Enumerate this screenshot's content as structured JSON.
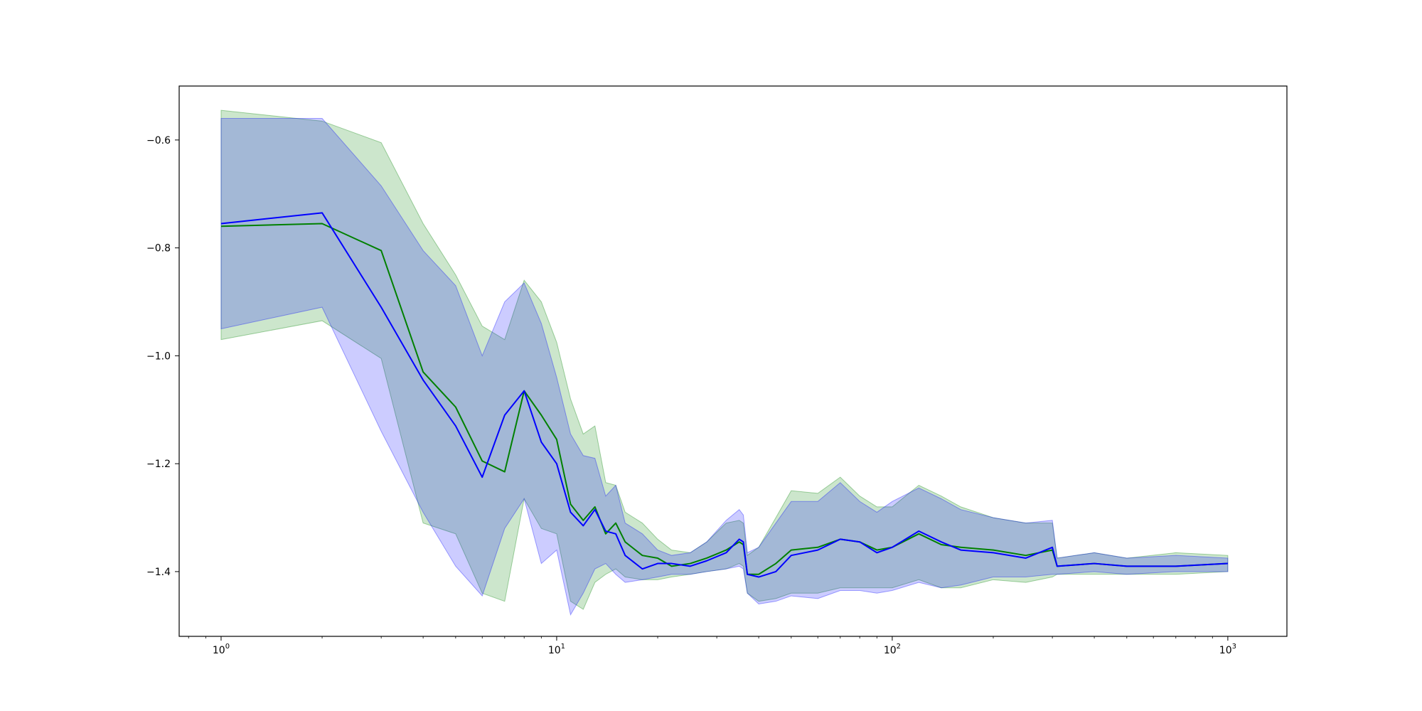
{
  "chart_data": {
    "type": "line",
    "title": "",
    "xlabel": "",
    "ylabel": "",
    "xscale": "log",
    "xlim": [
      0.75,
      1500
    ],
    "ylim": [
      -1.52,
      -0.5
    ],
    "grid": false,
    "legend": "none",
    "x_ticks": [
      {
        "base": "10",
        "exp": "0",
        "value": 1
      },
      {
        "base": "10",
        "exp": "1",
        "value": 10
      },
      {
        "base": "10",
        "exp": "2",
        "value": 100
      },
      {
        "base": "10",
        "exp": "3",
        "value": 1000
      }
    ],
    "y_ticks": [
      {
        "label": "−0.6",
        "value": -0.6
      },
      {
        "label": "−0.8",
        "value": -0.8
      },
      {
        "label": "−1.0",
        "value": -1.0
      },
      {
        "label": "−1.2",
        "value": -1.2
      },
      {
        "label": "−1.4",
        "value": -1.4
      }
    ],
    "series": [
      {
        "color": "#008000",
        "band_color": "#008000",
        "band_opacity": 0.2,
        "x": [
          1,
          2,
          3,
          4,
          5,
          6,
          7,
          8,
          9,
          10,
          11,
          12,
          13,
          14,
          15,
          16,
          18,
          20,
          22,
          25,
          28,
          32,
          35,
          36,
          37,
          40,
          45,
          50,
          60,
          70,
          80,
          90,
          100,
          120,
          140,
          160,
          200,
          250,
          300,
          310,
          400,
          500,
          700,
          1000
        ],
        "y": [
          -0.76,
          -0.755,
          -0.805,
          -1.03,
          -1.095,
          -1.195,
          -1.215,
          -1.065,
          -1.11,
          -1.155,
          -1.275,
          -1.305,
          -1.28,
          -1.33,
          -1.31,
          -1.345,
          -1.37,
          -1.375,
          -1.39,
          -1.385,
          -1.375,
          -1.36,
          -1.345,
          -1.35,
          -1.405,
          -1.405,
          -1.385,
          -1.36,
          -1.355,
          -1.34,
          -1.345,
          -1.36,
          -1.355,
          -1.33,
          -1.35,
          -1.355,
          -1.36,
          -1.37,
          -1.36,
          -1.39,
          -1.385,
          -1.39,
          -1.39,
          -1.385
        ],
        "upper": [
          -0.545,
          -0.565,
          -0.605,
          -0.755,
          -0.85,
          -0.945,
          -0.97,
          -0.86,
          -0.9,
          -0.975,
          -1.08,
          -1.145,
          -1.13,
          -1.235,
          -1.24,
          -1.29,
          -1.31,
          -1.34,
          -1.36,
          -1.365,
          -1.345,
          -1.31,
          -1.305,
          -1.31,
          -1.37,
          -1.355,
          -1.3,
          -1.25,
          -1.255,
          -1.225,
          -1.26,
          -1.28,
          -1.28,
          -1.24,
          -1.26,
          -1.28,
          -1.3,
          -1.31,
          -1.31,
          -1.375,
          -1.365,
          -1.375,
          -1.365,
          -1.37
        ],
        "lower": [
          -0.97,
          -0.935,
          -1.005,
          -1.31,
          -1.33,
          -1.44,
          -1.455,
          -1.265,
          -1.32,
          -1.33,
          -1.455,
          -1.47,
          -1.42,
          -1.405,
          -1.395,
          -1.41,
          -1.415,
          -1.415,
          -1.41,
          -1.405,
          -1.4,
          -1.395,
          -1.385,
          -1.39,
          -1.44,
          -1.455,
          -1.45,
          -1.44,
          -1.44,
          -1.43,
          -1.43,
          -1.43,
          -1.43,
          -1.415,
          -1.43,
          -1.43,
          -1.415,
          -1.42,
          -1.41,
          -1.405,
          -1.405,
          -1.405,
          -1.405,
          -1.4
        ]
      },
      {
        "color": "#0000ff",
        "band_color": "#0000ff",
        "band_opacity": 0.2,
        "x": [
          1,
          2,
          3,
          4,
          5,
          6,
          7,
          8,
          9,
          10,
          11,
          12,
          13,
          14,
          15,
          16,
          18,
          20,
          22,
          25,
          28,
          32,
          35,
          36,
          37,
          40,
          45,
          50,
          60,
          70,
          80,
          90,
          100,
          120,
          140,
          160,
          200,
          250,
          300,
          310,
          400,
          500,
          700,
          1000
        ],
        "y": [
          -0.755,
          -0.735,
          -0.91,
          -1.045,
          -1.13,
          -1.225,
          -1.11,
          -1.065,
          -1.16,
          -1.2,
          -1.29,
          -1.315,
          -1.285,
          -1.325,
          -1.33,
          -1.37,
          -1.395,
          -1.385,
          -1.385,
          -1.39,
          -1.38,
          -1.365,
          -1.34,
          -1.345,
          -1.405,
          -1.41,
          -1.4,
          -1.37,
          -1.36,
          -1.34,
          -1.345,
          -1.365,
          -1.355,
          -1.325,
          -1.345,
          -1.36,
          -1.365,
          -1.375,
          -1.355,
          -1.39,
          -1.385,
          -1.39,
          -1.39,
          -1.385
        ],
        "upper": [
          -0.56,
          -0.56,
          -0.685,
          -0.805,
          -0.87,
          -1.0,
          -0.9,
          -0.865,
          -0.94,
          -1.04,
          -1.145,
          -1.185,
          -1.19,
          -1.26,
          -1.24,
          -1.31,
          -1.33,
          -1.36,
          -1.37,
          -1.365,
          -1.345,
          -1.305,
          -1.285,
          -1.295,
          -1.365,
          -1.355,
          -1.31,
          -1.27,
          -1.27,
          -1.235,
          -1.27,
          -1.29,
          -1.27,
          -1.245,
          -1.265,
          -1.285,
          -1.3,
          -1.31,
          -1.305,
          -1.375,
          -1.365,
          -1.375,
          -1.37,
          -1.375
        ],
        "lower": [
          -0.95,
          -0.91,
          -1.14,
          -1.29,
          -1.39,
          -1.445,
          -1.32,
          -1.265,
          -1.385,
          -1.36,
          -1.48,
          -1.44,
          -1.395,
          -1.385,
          -1.405,
          -1.42,
          -1.415,
          -1.41,
          -1.405,
          -1.405,
          -1.4,
          -1.395,
          -1.39,
          -1.395,
          -1.44,
          -1.46,
          -1.455,
          -1.445,
          -1.45,
          -1.435,
          -1.435,
          -1.44,
          -1.435,
          -1.42,
          -1.43,
          -1.425,
          -1.41,
          -1.41,
          -1.405,
          -1.405,
          -1.4,
          -1.405,
          -1.4,
          -1.4
        ]
      }
    ]
  }
}
